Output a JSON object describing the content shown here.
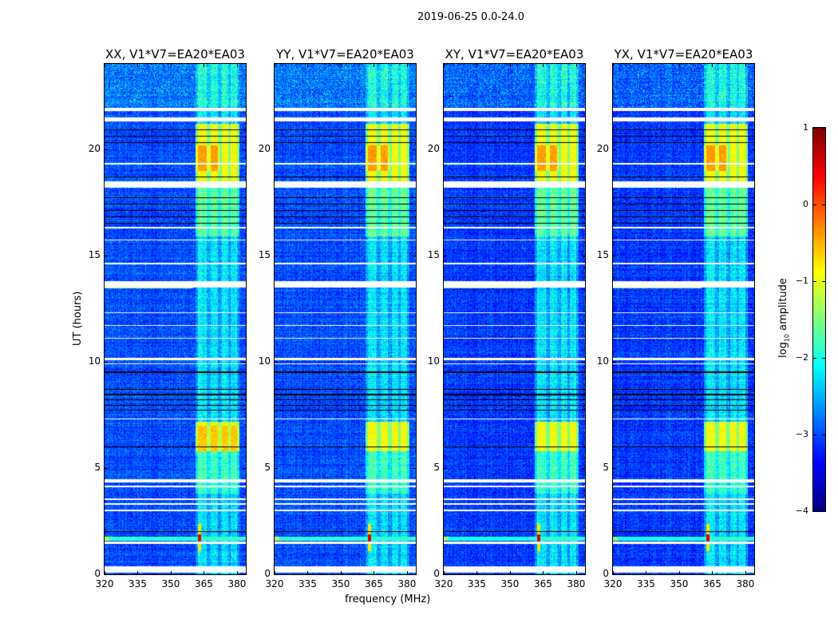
{
  "chart_data": {
    "type": "heatmap",
    "title": "2019-06-25 0.0-24.0",
    "xlabel": "frequency (MHz)",
    "ylabel": "UT (hours)",
    "xlim": [
      320,
      384
    ],
    "ylim": [
      0,
      24
    ],
    "xticks": [
      "320",
      "335",
      "350",
      "365",
      "380"
    ],
    "xtick_values": [
      320,
      335,
      350,
      365,
      380
    ],
    "yticks": [
      "0",
      "5",
      "10",
      "15",
      "20"
    ],
    "ytick_values": [
      0,
      5,
      10,
      15,
      20
    ],
    "panels": [
      {
        "title": "XX, V1*V7=EA20*EA03",
        "pol": "XX"
      },
      {
        "title": "YY, V1*V7=EA20*EA03",
        "pol": "YY"
      },
      {
        "title": "XY, V1*V7=EA20*EA03",
        "pol": "XY"
      },
      {
        "title": "YX, V1*V7=EA20*EA03",
        "pol": "YX"
      }
    ],
    "colorbar": {
      "label_prefix": "log",
      "label_sub": "10",
      "label_suffix": " amplitude",
      "range": [
        -4,
        1
      ],
      "ticks": [
        "1",
        "0",
        "−1",
        "−2",
        "−3",
        "−4"
      ],
      "tick_values": [
        1,
        0,
        -1,
        -2,
        -3,
        -4
      ],
      "colormap": "jet"
    },
    "features": {
      "bright_band_mhz": [
        361,
        381
      ],
      "hot_intervals_ut": [
        [
          18.2,
          21.2
        ],
        [
          5.8,
          7.2
        ]
      ],
      "rfi_line_ut": 1.7,
      "rfi_spike_mhz": 363,
      "flagged_ut": [
        [
          0.1,
          0.4
        ],
        [
          1.45,
          1.55
        ],
        [
          3.0,
          3.05
        ],
        [
          3.3,
          3.35
        ],
        [
          3.5,
          3.6
        ],
        [
          4.1,
          4.2
        ],
        [
          4.35,
          4.5
        ],
        [
          7.3,
          7.35
        ],
        [
          9.9,
          9.95
        ],
        [
          10.1,
          10.2
        ],
        [
          11.1,
          11.15
        ],
        [
          11.7,
          11.75
        ],
        [
          12.3,
          12.35
        ],
        [
          13.5,
          13.8
        ],
        [
          14.6,
          14.65
        ],
        [
          15.7,
          15.75
        ],
        [
          16.3,
          16.35
        ],
        [
          18.2,
          18.5
        ],
        [
          19.3,
          19.35
        ],
        [
          21.3,
          21.5
        ],
        [
          21.8,
          21.95
        ]
      ],
      "blank_ut": [
        [
          2.0,
          2.03
        ],
        [
          6.0,
          6.04
        ],
        [
          7.7,
          7.74
        ],
        [
          7.95,
          7.99
        ],
        [
          8.2,
          8.24
        ],
        [
          8.45,
          8.49
        ],
        [
          8.7,
          8.74
        ],
        [
          9.5,
          9.55
        ],
        [
          16.5,
          16.54
        ],
        [
          16.8,
          16.84
        ],
        [
          17.1,
          17.14
        ],
        [
          17.4,
          17.44
        ],
        [
          17.7,
          17.74
        ],
        [
          18.7,
          18.74
        ],
        [
          20.3,
          20.34
        ],
        [
          20.6,
          20.64
        ],
        [
          20.9,
          20.94
        ]
      ]
    }
  }
}
